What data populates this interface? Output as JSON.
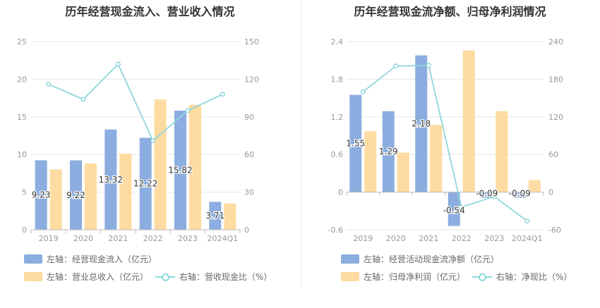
{
  "colors": {
    "bar1": "#8caddf",
    "bar2": "#fedba0",
    "line": "#8ed6dc",
    "axis": "#999999",
    "grid": "#e6e6e6",
    "text": "#666666"
  },
  "chart_data": [
    {
      "type": "bar",
      "title": "历年经营现金流入、营业收入情况",
      "categories": [
        "2019",
        "2020",
        "2021",
        "2022",
        "2023",
        "2024Q1"
      ],
      "left_axis": {
        "ticks": [
          "0",
          "5",
          "10",
          "15",
          "20",
          "25"
        ],
        "ylim": [
          0,
          25
        ]
      },
      "right_axis": {
        "ticks": [
          "0",
          "30",
          "60",
          "90",
          "120",
          "150"
        ],
        "ylim": [
          0,
          150
        ]
      },
      "series": [
        {
          "name": "左轴：经营现金流入（亿元）",
          "type": "bar",
          "axis": "left",
          "values": [
            9.23,
            9.22,
            13.32,
            12.22,
            15.82,
            3.71
          ],
          "labels": [
            "9.23",
            "9.22",
            "13.32",
            "12.22",
            "15.82",
            "3.71"
          ]
        },
        {
          "name": "左轴：营业总收入（亿元）",
          "type": "bar",
          "axis": "left",
          "values": [
            8.0,
            8.8,
            10.1,
            17.3,
            16.6,
            3.5
          ]
        },
        {
          "name": "右轴：营收现金比（%）",
          "type": "line",
          "axis": "right",
          "values": [
            116,
            104,
            132,
            71,
            95,
            108
          ]
        }
      ]
    },
    {
      "type": "bar",
      "title": "历年经营现金流净额、归母净利润情况",
      "categories": [
        "2019",
        "2020",
        "2021",
        "2022",
        "2023",
        "2024Q1"
      ],
      "left_axis": {
        "ticks": [
          "-0.6",
          "0",
          "0.6",
          "1.2",
          "1.8",
          "2.4"
        ],
        "ylim": [
          -0.6,
          2.4
        ]
      },
      "right_axis": {
        "ticks": [
          "-60",
          "0",
          "60",
          "120",
          "180",
          "240"
        ],
        "ylim": [
          -60,
          240
        ]
      },
      "series": [
        {
          "name": "左轴：经营活动现金流净额（亿元）",
          "type": "bar",
          "axis": "left",
          "values": [
            1.55,
            1.29,
            2.18,
            -0.54,
            -0.09,
            -0.09
          ],
          "labels": [
            "1.55",
            "1.29",
            "2.18",
            "-0.54",
            "-0.09",
            "-0.09"
          ]
        },
        {
          "name": "左轴：归母净利润（亿元）",
          "type": "bar",
          "axis": "left",
          "values": [
            0.97,
            0.63,
            1.07,
            2.26,
            1.29,
            0.19
          ]
        },
        {
          "name": "右轴：净现比（%）",
          "type": "line",
          "axis": "right",
          "values": [
            160,
            201,
            202,
            -24,
            -7,
            -46
          ]
        }
      ]
    }
  ]
}
